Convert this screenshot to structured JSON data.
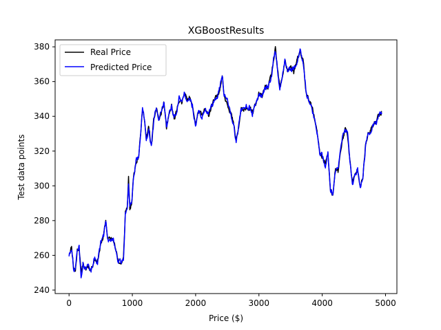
{
  "chart_data": {
    "type": "line",
    "title": "XGBoostResults",
    "xlabel": "Price ($)",
    "ylabel": "Test data points",
    "xlim": [
      -220,
      5180
    ],
    "ylim": [
      238,
      384
    ],
    "xticks": [
      0,
      1000,
      2000,
      3000,
      4000,
      5000
    ],
    "yticks": [
      240,
      260,
      280,
      300,
      320,
      340,
      360,
      380
    ],
    "grid": false,
    "legend_position": "top-left",
    "series": [
      {
        "name": "Real Price",
        "color": "#000000",
        "anchors": [
          [
            0,
            261
          ],
          [
            40,
            265
          ],
          [
            70,
            254
          ],
          [
            100,
            251
          ],
          [
            130,
            263
          ],
          [
            160,
            265
          ],
          [
            190,
            249
          ],
          [
            220,
            256
          ],
          [
            260,
            251
          ],
          [
            300,
            254
          ],
          [
            350,
            252
          ],
          [
            400,
            258
          ],
          [
            450,
            257
          ],
          [
            500,
            266
          ],
          [
            550,
            272
          ],
          [
            580,
            280
          ],
          [
            610,
            270
          ],
          [
            660,
            269
          ],
          [
            700,
            271
          ],
          [
            740,
            262
          ],
          [
            780,
            257
          ],
          [
            820,
            255
          ],
          [
            860,
            258
          ],
          [
            890,
            285
          ],
          [
            920,
            288
          ],
          [
            940,
            304
          ],
          [
            960,
            286
          ],
          [
            990,
            290
          ],
          [
            1020,
            306
          ],
          [
            1060,
            314
          ],
          [
            1100,
            318
          ],
          [
            1130,
            330
          ],
          [
            1160,
            343
          ],
          [
            1190,
            340
          ],
          [
            1220,
            326
          ],
          [
            1260,
            334
          ],
          [
            1300,
            322
          ],
          [
            1340,
            338
          ],
          [
            1380,
            345
          ],
          [
            1420,
            338
          ],
          [
            1460,
            342
          ],
          [
            1500,
            348
          ],
          [
            1540,
            333
          ],
          [
            1580,
            340
          ],
          [
            1620,
            346
          ],
          [
            1660,
            338
          ],
          [
            1700,
            342
          ],
          [
            1740,
            350
          ],
          [
            1780,
            347
          ],
          [
            1820,
            355
          ],
          [
            1860,
            349
          ],
          [
            1900,
            352
          ],
          [
            1950,
            345
          ],
          [
            2000,
            336
          ],
          [
            2050,
            343
          ],
          [
            2100,
            340
          ],
          [
            2150,
            344
          ],
          [
            2200,
            340
          ],
          [
            2250,
            346
          ],
          [
            2300,
            349
          ],
          [
            2350,
            352
          ],
          [
            2390,
            358
          ],
          [
            2420,
            364
          ],
          [
            2450,
            352
          ],
          [
            2500,
            348
          ],
          [
            2550,
            343
          ],
          [
            2600,
            335
          ],
          [
            2640,
            326
          ],
          [
            2680,
            333
          ],
          [
            2720,
            345
          ],
          [
            2760,
            342
          ],
          [
            2800,
            346
          ],
          [
            2850,
            344
          ],
          [
            2900,
            342
          ],
          [
            2950,
            347
          ],
          [
            3000,
            353
          ],
          [
            3050,
            351
          ],
          [
            3100,
            357
          ],
          [
            3150,
            357
          ],
          [
            3200,
            364
          ],
          [
            3230,
            372
          ],
          [
            3260,
            378
          ],
          [
            3290,
            368
          ],
          [
            3330,
            356
          ],
          [
            3370,
            362
          ],
          [
            3410,
            373
          ],
          [
            3450,
            366
          ],
          [
            3500,
            368
          ],
          [
            3550,
            366
          ],
          [
            3600,
            372
          ],
          [
            3650,
            376
          ],
          [
            3700,
            372
          ],
          [
            3750,
            352
          ],
          [
            3790,
            350
          ],
          [
            3830,
            346
          ],
          [
            3870,
            340
          ],
          [
            3920,
            330
          ],
          [
            3960,
            319
          ],
          [
            4000,
            317
          ],
          [
            4050,
            313
          ],
          [
            4090,
            318
          ],
          [
            4130,
            298
          ],
          [
            4170,
            294
          ],
          [
            4210,
            310
          ],
          [
            4250,
            308
          ],
          [
            4280,
            318
          ],
          [
            4320,
            326
          ],
          [
            4360,
            333
          ],
          [
            4400,
            330
          ],
          [
            4440,
            313
          ],
          [
            4480,
            302
          ],
          [
            4520,
            306
          ],
          [
            4560,
            310
          ],
          [
            4600,
            301
          ],
          [
            4640,
            303
          ],
          [
            4680,
            322
          ],
          [
            4720,
            329
          ],
          [
            4760,
            331
          ],
          [
            4800,
            335
          ],
          [
            4850,
            337
          ],
          [
            4900,
            341
          ],
          [
            4940,
            343
          ]
        ]
      },
      {
        "name": "Predicted Price",
        "color": "#0000ff",
        "anchors": [
          [
            0,
            260
          ],
          [
            40,
            265
          ],
          [
            70,
            253
          ],
          [
            100,
            252
          ],
          [
            130,
            262
          ],
          [
            160,
            266
          ],
          [
            190,
            246
          ],
          [
            220,
            256
          ],
          [
            260,
            252
          ],
          [
            300,
            254
          ],
          [
            350,
            251
          ],
          [
            400,
            259
          ],
          [
            450,
            256
          ],
          [
            500,
            267
          ],
          [
            550,
            271
          ],
          [
            580,
            281
          ],
          [
            610,
            269
          ],
          [
            660,
            268
          ],
          [
            700,
            270
          ],
          [
            740,
            263
          ],
          [
            780,
            256
          ],
          [
            820,
            256
          ],
          [
            860,
            258
          ],
          [
            890,
            284
          ],
          [
            920,
            289
          ],
          [
            940,
            300
          ],
          [
            960,
            287
          ],
          [
            990,
            291
          ],
          [
            1020,
            305
          ],
          [
            1060,
            315
          ],
          [
            1100,
            317
          ],
          [
            1130,
            331
          ],
          [
            1160,
            344
          ],
          [
            1190,
            339
          ],
          [
            1220,
            327
          ],
          [
            1260,
            333
          ],
          [
            1300,
            323
          ],
          [
            1340,
            337
          ],
          [
            1380,
            346
          ],
          [
            1420,
            337
          ],
          [
            1460,
            343
          ],
          [
            1500,
            347
          ],
          [
            1540,
            334
          ],
          [
            1580,
            341
          ],
          [
            1620,
            345
          ],
          [
            1660,
            339
          ],
          [
            1700,
            341
          ],
          [
            1740,
            351
          ],
          [
            1780,
            346
          ],
          [
            1820,
            354
          ],
          [
            1860,
            350
          ],
          [
            1900,
            351
          ],
          [
            1950,
            346
          ],
          [
            2000,
            335
          ],
          [
            2050,
            344
          ],
          [
            2100,
            339
          ],
          [
            2150,
            345
          ],
          [
            2200,
            341
          ],
          [
            2250,
            345
          ],
          [
            2300,
            350
          ],
          [
            2350,
            351
          ],
          [
            2390,
            359
          ],
          [
            2420,
            365
          ],
          [
            2450,
            351
          ],
          [
            2500,
            349
          ],
          [
            2550,
            342
          ],
          [
            2600,
            336
          ],
          [
            2640,
            325
          ],
          [
            2680,
            334
          ],
          [
            2720,
            344
          ],
          [
            2760,
            343
          ],
          [
            2800,
            345
          ],
          [
            2850,
            345
          ],
          [
            2900,
            341
          ],
          [
            2950,
            348
          ],
          [
            3000,
            352
          ],
          [
            3050,
            352
          ],
          [
            3100,
            356
          ],
          [
            3150,
            358
          ],
          [
            3200,
            363
          ],
          [
            3230,
            373
          ],
          [
            3260,
            377
          ],
          [
            3290,
            369
          ],
          [
            3330,
            355
          ],
          [
            3370,
            363
          ],
          [
            3410,
            372
          ],
          [
            3450,
            367
          ],
          [
            3500,
            367
          ],
          [
            3550,
            367
          ],
          [
            3600,
            371
          ],
          [
            3650,
            377
          ],
          [
            3700,
            371
          ],
          [
            3750,
            353
          ],
          [
            3790,
            349
          ],
          [
            3830,
            347
          ],
          [
            3870,
            339
          ],
          [
            3920,
            331
          ],
          [
            3960,
            318
          ],
          [
            4000,
            318
          ],
          [
            4050,
            312
          ],
          [
            4090,
            319
          ],
          [
            4130,
            297
          ],
          [
            4170,
            295
          ],
          [
            4210,
            309
          ],
          [
            4250,
            309
          ],
          [
            4280,
            317
          ],
          [
            4320,
            327
          ],
          [
            4360,
            332
          ],
          [
            4400,
            331
          ],
          [
            4440,
            312
          ],
          [
            4480,
            300
          ],
          [
            4520,
            307
          ],
          [
            4560,
            309
          ],
          [
            4600,
            298
          ],
          [
            4640,
            304
          ],
          [
            4680,
            321
          ],
          [
            4720,
            330
          ],
          [
            4760,
            330
          ],
          [
            4800,
            336
          ],
          [
            4850,
            336
          ],
          [
            4900,
            342
          ],
          [
            4940,
            342
          ]
        ]
      }
    ]
  }
}
